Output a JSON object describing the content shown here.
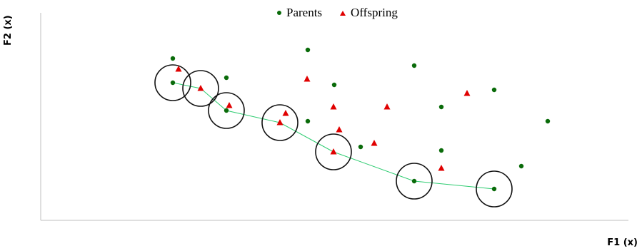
{
  "chart_data": {
    "type": "scatter",
    "xlabel": "F1 (x)",
    "ylabel": "F2 (x)",
    "legend": {
      "position": "top-center",
      "placement": "top-center"
    },
    "grid": false,
    "series": [
      {
        "name": "Parents",
        "marker": "circle",
        "color": "#0a6b0a",
        "points": [
          [
            242,
            82
          ],
          [
            242,
            116
          ],
          [
            317,
            109
          ],
          [
            317,
            155
          ],
          [
            431,
            70
          ],
          [
            431,
            170
          ],
          [
            468,
            119
          ],
          [
            505,
            206
          ],
          [
            580,
            92
          ],
          [
            580,
            254
          ],
          [
            618,
            150
          ],
          [
            618,
            211
          ],
          [
            692,
            126
          ],
          [
            692,
            265
          ],
          [
            730,
            233
          ],
          [
            767,
            170
          ]
        ]
      },
      {
        "name": "Offspring",
        "marker": "triangle",
        "color": "#e00000",
        "points": [
          [
            250,
            97
          ],
          [
            281,
            124
          ],
          [
            321,
            148
          ],
          [
            392,
            172
          ],
          [
            400,
            159
          ],
          [
            430,
            111
          ],
          [
            467,
            150
          ],
          [
            475,
            182
          ],
          [
            467,
            213
          ],
          [
            524,
            201
          ],
          [
            542,
            150
          ],
          [
            618,
            236
          ],
          [
            654,
            131
          ]
        ]
      }
    ],
    "front_line": {
      "color": "#2ecc71",
      "points": [
        [
          242,
          116
        ],
        [
          281,
          124
        ],
        [
          317,
          155
        ],
        [
          392,
          172
        ],
        [
          467,
          213
        ],
        [
          580,
          254
        ],
        [
          692,
          265
        ]
      ]
    },
    "circled_points": [
      [
        242,
        116
      ],
      [
        281,
        124
      ],
      [
        317,
        155
      ],
      [
        392,
        172
      ],
      [
        467,
        213
      ],
      [
        580,
        254
      ],
      [
        692,
        265
      ]
    ]
  }
}
